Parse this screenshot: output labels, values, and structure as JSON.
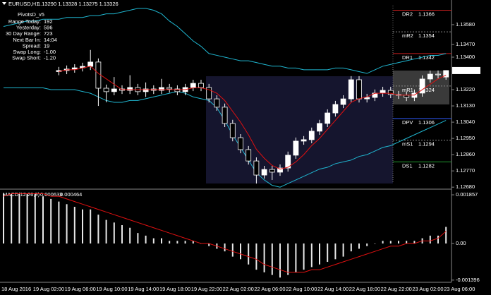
{
  "chart_data": [
    {
      "type": "candlestick",
      "title": "EURUSD,H1",
      "quote": "1.13290 1.13328 1.13275 1.13326",
      "categories": [
        "18 Aug 2016",
        null,
        null,
        null,
        "19 Aug 02:00",
        null,
        null,
        null,
        "19 Aug 06:00",
        null,
        null,
        null,
        "19 Aug 10:00",
        null,
        null,
        null,
        "19 Aug 14:00",
        null,
        null,
        null,
        "19 Aug 18:00",
        null,
        null,
        null,
        "19 Aug 22:00",
        null,
        null,
        null,
        "22 Aug 02:00",
        null,
        null,
        null,
        "22 Aug 06:00",
        null,
        null,
        null,
        "22 Aug 10:00",
        null,
        null,
        null,
        "22 Aug 14:00",
        null,
        null,
        null,
        "22 Aug 18:00",
        null,
        null,
        null,
        "22 Aug 22:00",
        null,
        null,
        null,
        "23 Aug 02:00",
        null,
        null,
        null,
        "23 Aug 06:00"
      ],
      "open": [
        null,
        null,
        null,
        null,
        null,
        null,
        null,
        1.1332,
        1.13326,
        1.13334,
        1.13341,
        1.13349,
        1.13373,
        1.13228,
        1.13209,
        1.13224,
        1.13216,
        1.13232,
        1.13209,
        1.13224,
        1.13216,
        1.13232,
        1.13224,
        1.13209,
        1.13232,
        1.13255,
        1.13232,
        1.13169,
        1.13123,
        1.13033,
        1.12954,
        1.12888,
        1.12825,
        1.12747,
        1.12778,
        1.12763,
        1.12786,
        1.12857,
        1.12935,
        1.12943,
        1.1299,
        1.13033,
        1.13091,
        1.13138,
        1.13169,
        1.13275,
        1.13169,
        1.13177,
        1.13201,
        1.13216,
        1.13193,
        1.13189,
        1.13177,
        1.13201,
        1.13279,
        1.13306,
        1.1329
      ],
      "high": [
        null,
        null,
        null,
        null,
        null,
        null,
        null,
        1.13346,
        1.13354,
        1.13361,
        1.13369,
        1.1344,
        1.13393,
        1.13248,
        1.1329,
        1.13244,
        1.133,
        1.13252,
        1.1326,
        1.13244,
        1.1328,
        1.13252,
        1.13244,
        1.13252,
        1.13275,
        1.13275,
        1.13252,
        1.13189,
        1.13143,
        1.13053,
        1.12974,
        1.12908,
        1.12845,
        1.12798,
        1.12798,
        1.12806,
        1.12877,
        1.12955,
        1.12963,
        1.1301,
        1.13053,
        1.13111,
        1.13158,
        1.13189,
        1.13295,
        1.13295,
        1.13197,
        1.13221,
        1.13236,
        1.13236,
        1.13213,
        1.13209,
        1.13221,
        1.13299,
        1.13326,
        1.13326,
        1.13328
      ],
      "low": [
        null,
        null,
        null,
        null,
        null,
        null,
        null,
        1.133,
        1.13306,
        1.13314,
        1.13321,
        1.13329,
        1.1313,
        1.1315,
        1.13189,
        1.13196,
        1.13196,
        1.13189,
        1.1318,
        1.13196,
        1.13196,
        1.13204,
        1.13189,
        1.13189,
        1.13212,
        1.13212,
        1.13149,
        1.13103,
        1.13013,
        1.12934,
        1.12868,
        1.12805,
        1.127,
        1.12727,
        1.1272,
        1.12743,
        1.12766,
        1.12837,
        1.12915,
        1.12923,
        1.1297,
        1.13013,
        1.13071,
        1.13118,
        1.13149,
        1.13149,
        1.13149,
        1.13157,
        1.13181,
        1.13173,
        1.13169,
        1.13157,
        1.13157,
        1.13181,
        1.13259,
        1.13282,
        1.13275
      ],
      "close": [
        null,
        null,
        null,
        null,
        null,
        null,
        null,
        1.13326,
        1.13334,
        1.13341,
        1.13349,
        1.13373,
        1.13228,
        1.13209,
        1.13224,
        1.13216,
        1.13232,
        1.13209,
        1.13224,
        1.13216,
        1.13232,
        1.13224,
        1.13209,
        1.13232,
        1.13255,
        1.13232,
        1.13169,
        1.13123,
        1.13033,
        1.12954,
        1.12888,
        1.12825,
        1.12747,
        1.12778,
        1.12763,
        1.12786,
        1.12857,
        1.12935,
        1.12943,
        1.1299,
        1.13033,
        1.13091,
        1.13138,
        1.13169,
        1.13275,
        1.13169,
        1.13177,
        1.13201,
        1.13216,
        1.13193,
        1.13189,
        1.13177,
        1.13201,
        1.13279,
        1.13306,
        1.13302,
        1.13326
      ],
      "ma": [
        null,
        null,
        null,
        null,
        null,
        null,
        null,
        1.1332,
        1.1333,
        1.1333,
        1.1334,
        1.1335,
        1.1331,
        1.1328,
        1.1325,
        1.1322,
        1.1322,
        1.1322,
        1.1322,
        1.1322,
        1.1322,
        1.1322,
        1.1322,
        1.1322,
        1.1323,
        1.1323,
        1.1322,
        1.132,
        1.1316,
        1.131,
        1.1304,
        1.1297,
        1.1289,
        1.1284,
        1.128,
        1.1278,
        1.1279,
        1.1282,
        1.1286,
        1.1291,
        1.1295,
        1.13,
        1.1305,
        1.131,
        1.1315,
        1.1317,
        1.1318,
        1.132,
        1.132,
        1.132,
        1.1319,
        1.1319,
        1.1319,
        1.1322,
        1.1325,
        1.1328,
        1.133
      ],
      "ma_color": "#e01010",
      "band_upper": [
        1.1357,
        1.1358,
        1.1359,
        1.136,
        1.136,
        1.1361,
        1.1361,
        1.1361,
        1.1362,
        1.1362,
        1.1362,
        1.1363,
        1.1363,
        1.1364,
        1.1364,
        1.1365,
        1.1366,
        1.1367,
        1.1367,
        1.1366,
        1.1364,
        1.136,
        1.1357,
        1.1353,
        1.1349,
        1.1346,
        1.1342,
        1.1341,
        1.134,
        1.1339,
        1.1338,
        1.1338,
        1.1337,
        1.1336,
        1.1335,
        1.1335,
        1.1334,
        1.1334,
        1.1333,
        1.1333,
        1.1333,
        1.1333,
        1.1334,
        1.1334,
        1.1333,
        1.1332,
        1.1331,
        1.1333,
        1.1335,
        1.1336,
        1.1337,
        1.1338,
        1.1339,
        1.134,
        1.1341,
        1.1341,
        1.1342
      ],
      "band_lower": [
        1.1323,
        1.1323,
        1.1323,
        1.1323,
        1.1323,
        1.1323,
        1.1322,
        1.1322,
        1.1322,
        1.1322,
        1.1321,
        1.132,
        1.1318,
        1.1316,
        1.1315,
        1.1315,
        1.1316,
        1.1316,
        1.1317,
        1.1318,
        1.1319,
        1.132,
        1.1321,
        1.132,
        1.1318,
        1.1317,
        1.1316,
        1.1312,
        1.1305,
        1.1297,
        1.129,
        1.1283,
        1.1276,
        1.1272,
        1.1269,
        1.1268,
        1.127,
        1.1272,
        1.1274,
        1.1276,
        1.1278,
        1.1279,
        1.1281,
        1.1282,
        1.1283,
        1.1285,
        1.1286,
        1.1288,
        1.129,
        1.1291,
        1.1293,
        1.1295,
        1.1297,
        1.1299,
        1.1301,
        1.1303,
        1.1305
      ],
      "band_color": "#1fb6d0",
      "ylim": [
        1.12669,
        1.13701
      ],
      "yticks": [
        {
          "value": 1.1358,
          "label": "1.13580"
        },
        {
          "value": 1.1347,
          "label": "1.13470"
        },
        {
          "value": 1.134,
          "label": "1.13400"
        },
        {
          "value": 1.1322,
          "label": "1.13220"
        },
        {
          "value": 1.1313,
          "label": "1.13130"
        },
        {
          "value": 1.1304,
          "label": "1.13040"
        },
        {
          "value": 1.1295,
          "label": "1.12950"
        },
        {
          "value": 1.1286,
          "label": "1.12860"
        },
        {
          "value": 1.1277,
          "label": "1.12770"
        },
        {
          "value": 1.1268,
          "label": "1.12680"
        }
      ],
      "bid": 1.13326,
      "pivots": [
        {
          "label": "DR2",
          "value": 1.1366,
          "color": "#c81e1e"
        },
        {
          "label": "mR2",
          "value": 1.1354,
          "color": "#888888"
        },
        {
          "label": "DR1",
          "value": 1.1342,
          "color": "#c81e1e"
        },
        {
          "label": "mR1",
          "value": 1.1324,
          "color": "#888888"
        },
        {
          "label": "DPV",
          "value": 1.1306,
          "color": "#2f5bff"
        },
        {
          "label": "mS1",
          "value": 1.1294,
          "color": "#888888"
        },
        {
          "label": "DS1",
          "value": 1.1282,
          "color": "#1f9a2f"
        }
      ],
      "panel": {
        "title": "PivotsD_v5",
        "rows": [
          [
            "Range Today:",
            "192"
          ],
          [
            "Yesterday:",
            "596"
          ],
          [
            "30 Day Range:",
            "723"
          ],
          [
            "Next Bar In:",
            "14:04"
          ],
          [
            "Spread:",
            "19"
          ],
          [
            "Swap Long:",
            "-1.00"
          ],
          [
            "Swap Short:",
            "-1.20"
          ]
        ]
      }
    },
    {
      "type": "macd",
      "title": "MACD(12,26,9)",
      "histogram": [
        0.0019,
        0.0019,
        0.0019,
        0.0019,
        0.0019,
        0.0018,
        0.0017,
        0.0016,
        0.0015,
        0.0014,
        0.0013,
        0.0013,
        0.0011,
        0.0009,
        0.0008,
        0.0007,
        0.0006,
        0.0004,
        0.0003,
        0.0002,
        0.0002,
        0.0001,
        0.0001,
        0.0001,
        0.0001,
        0,
        -0.0001,
        -0.0002,
        -0.0003,
        -0.0005,
        -0.0006,
        -0.0008,
        -0.001,
        -0.0011,
        -0.0012,
        -0.0013,
        -0.0012,
        -0.0011,
        -0.001,
        -0.0009,
        -0.0008,
        -0.0007,
        -0.0006,
        -0.0005,
        -0.0003,
        -0.0002,
        -0.0001,
        0,
        0.0001,
        0.0001,
        0.0001,
        0.0001,
        0.0001,
        0.0002,
        0.0003,
        0.0003,
        0.000633
      ],
      "signal": [
        0.0018,
        0.0019,
        0.0019,
        0.0019,
        0.0019,
        0.0019,
        0.0018,
        0.0018,
        0.0017,
        0.0016,
        0.0015,
        0.0014,
        0.0013,
        0.0012,
        0.0011,
        0.001,
        0.0009,
        0.0008,
        0.0007,
        0.0006,
        0.0005,
        0.0004,
        0.0003,
        0.0002,
        0.0001,
        0,
        0,
        -0.0001,
        -0.0002,
        -0.0003,
        -0.0004,
        -0.0005,
        -0.0006,
        -0.0008,
        -0.0009,
        -0.001,
        -0.0011,
        -0.0011,
        -0.0011,
        -0.001,
        -0.001,
        -0.0009,
        -0.0008,
        -0.0007,
        -0.0006,
        -0.0005,
        -0.0004,
        -0.0003,
        -0.0002,
        -0.0001,
        -0.0001,
        0,
        0,
        0.0001,
        0.0001,
        0.0002,
        0.000464
      ],
      "histogram_color": "#e8e8e8",
      "signal_color": "#e01010",
      "ylim": [
        -0.00148,
        0.00202
      ],
      "yticks": [
        0.001857,
        {
          "value": 0,
          "label": "0.00"
        },
        -0.001396
      ]
    }
  ]
}
